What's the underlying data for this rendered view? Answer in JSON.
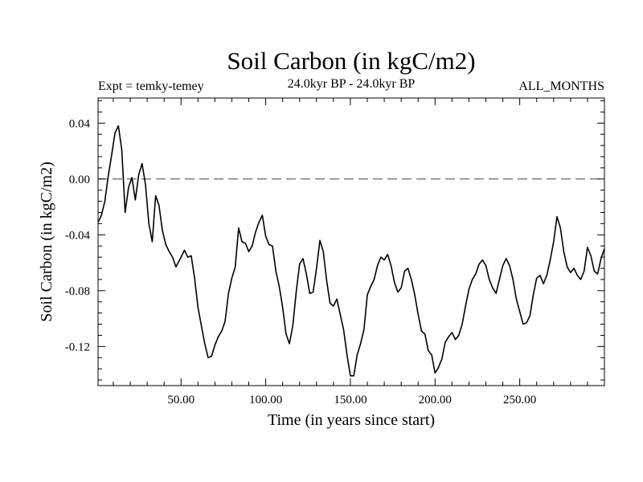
{
  "chart_data": {
    "type": "line",
    "title": "Soil Carbon (in kgC/m2)",
    "experiment_label": "Expt = temky-temey",
    "period_label": "24.0kyr BP - 24.0kyr BP",
    "months_label": "ALL_MONTHS",
    "xlabel": "Time (in years since start)",
    "ylabel": "Soil Carbon (in kgC/m2)",
    "xlim": [
      1,
      300
    ],
    "ylim": [
      -0.148,
      0.058
    ],
    "xticks": [
      50,
      100,
      150,
      200,
      250
    ],
    "xtick_labels": [
      "50.00",
      "100.00",
      "150.00",
      "200.00",
      "250.00"
    ],
    "yticks": [
      0.04,
      0.0,
      -0.04,
      -0.08,
      -0.12
    ],
    "ytick_labels": [
      "0.04",
      "0.00",
      "-0.04",
      "-0.08",
      "-0.12"
    ],
    "reference_line": 0.0,
    "grid": false,
    "colors": {
      "line": "#000000",
      "reference": "#555555",
      "background": "#ffffff"
    },
    "series": [
      {
        "x": [
          1,
          3,
          5,
          7,
          9,
          11,
          13,
          15,
          17,
          19,
          21,
          23,
          25,
          27,
          29,
          31,
          33,
          35,
          37,
          39,
          41,
          43,
          45,
          47,
          50,
          52,
          54,
          56,
          58,
          60,
          62,
          64,
          66,
          68,
          70,
          72,
          74,
          76,
          78,
          80,
          82,
          84,
          86,
          88,
          90,
          92,
          94,
          96,
          98,
          100,
          102,
          104,
          106,
          108,
          110,
          112,
          114,
          116,
          118,
          120,
          122,
          124,
          126,
          128,
          130,
          132,
          134,
          136,
          138,
          140,
          142,
          144,
          146,
          148,
          150,
          152,
          154,
          156,
          158,
          160,
          162,
          164,
          166,
          168,
          170,
          172,
          174,
          176,
          178,
          180,
          182,
          184,
          186,
          188,
          190,
          192,
          194,
          196,
          198,
          200,
          202,
          204,
          206,
          208,
          210,
          212,
          214,
          216,
          218,
          220,
          222,
          224,
          226,
          228,
          230,
          232,
          234,
          236,
          238,
          240,
          242,
          244,
          246,
          248,
          250,
          252,
          254,
          256,
          258,
          260,
          262,
          264,
          266,
          268,
          270,
          272,
          274,
          276,
          278,
          280,
          282,
          284,
          286,
          288,
          290,
          292,
          294,
          296,
          298,
          300
        ],
        "values": [
          -0.031,
          -0.026,
          -0.016,
          0.002,
          0.017,
          0.033,
          0.038,
          0.021,
          -0.024,
          -0.006,
          0.001,
          -0.015,
          0.003,
          0.011,
          -0.004,
          -0.032,
          -0.045,
          -0.012,
          -0.019,
          -0.037,
          -0.047,
          -0.052,
          -0.056,
          -0.063,
          -0.056,
          -0.051,
          -0.056,
          -0.055,
          -0.071,
          -0.092,
          -0.105,
          -0.118,
          -0.128,
          -0.127,
          -0.119,
          -0.113,
          -0.109,
          -0.102,
          -0.082,
          -0.071,
          -0.063,
          -0.035,
          -0.045,
          -0.046,
          -0.052,
          -0.048,
          -0.038,
          -0.031,
          -0.026,
          -0.041,
          -0.047,
          -0.048,
          -0.066,
          -0.077,
          -0.092,
          -0.111,
          -0.118,
          -0.105,
          -0.081,
          -0.061,
          -0.057,
          -0.068,
          -0.082,
          -0.081,
          -0.064,
          -0.044,
          -0.052,
          -0.073,
          -0.089,
          -0.091,
          -0.086,
          -0.097,
          -0.108,
          -0.126,
          -0.141,
          -0.141,
          -0.126,
          -0.118,
          -0.108,
          -0.083,
          -0.077,
          -0.072,
          -0.062,
          -0.056,
          -0.058,
          -0.054,
          -0.062,
          -0.074,
          -0.081,
          -0.078,
          -0.066,
          -0.064,
          -0.072,
          -0.083,
          -0.097,
          -0.109,
          -0.111,
          -0.123,
          -0.126,
          -0.139,
          -0.135,
          -0.129,
          -0.117,
          -0.113,
          -0.11,
          -0.115,
          -0.112,
          -0.104,
          -0.091,
          -0.079,
          -0.072,
          -0.068,
          -0.061,
          -0.058,
          -0.062,
          -0.072,
          -0.078,
          -0.082,
          -0.072,
          -0.062,
          -0.057,
          -0.062,
          -0.072,
          -0.086,
          -0.095,
          -0.104,
          -0.103,
          -0.098,
          -0.083,
          -0.071,
          -0.069,
          -0.075,
          -0.069,
          -0.058,
          -0.045,
          -0.027,
          -0.035,
          -0.052,
          -0.063,
          -0.067,
          -0.064,
          -0.069,
          -0.072,
          -0.066,
          -0.049,
          -0.055,
          -0.066,
          -0.068,
          -0.057,
          -0.05
        ]
      }
    ]
  }
}
